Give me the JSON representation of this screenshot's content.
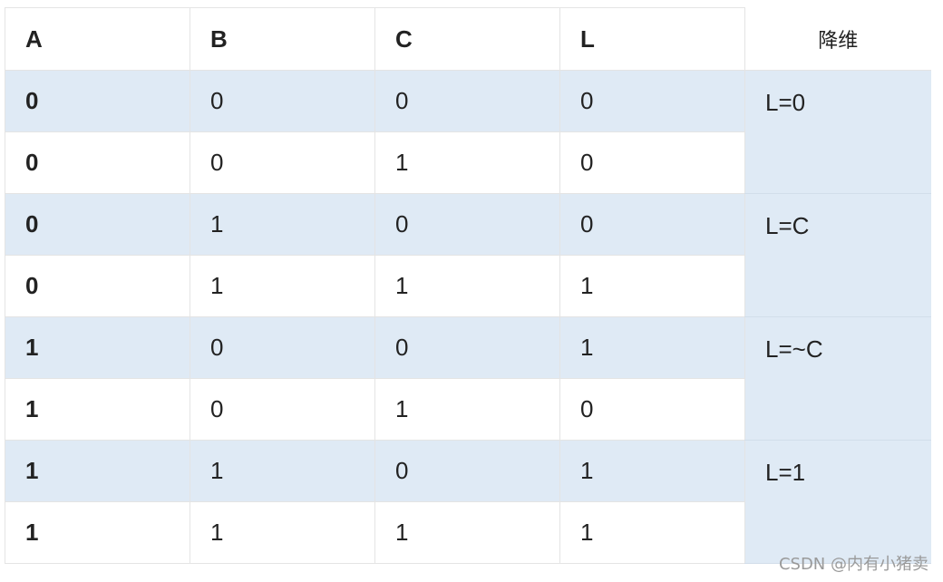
{
  "table": {
    "headers": [
      "A",
      "B",
      "C",
      "L",
      "降维"
    ],
    "rows": [
      [
        "0",
        "0",
        "0",
        "0"
      ],
      [
        "0",
        "0",
        "1",
        "0"
      ],
      [
        "0",
        "1",
        "0",
        "0"
      ],
      [
        "0",
        "1",
        "1",
        "1"
      ],
      [
        "1",
        "0",
        "0",
        "1"
      ],
      [
        "1",
        "0",
        "1",
        "0"
      ],
      [
        "1",
        "1",
        "0",
        "1"
      ],
      [
        "1",
        "1",
        "1",
        "1"
      ]
    ],
    "reductions": [
      "L=0",
      "L=C",
      "L=~C",
      "L=1"
    ]
  },
  "watermark": "CSDN @内有小猪卖"
}
